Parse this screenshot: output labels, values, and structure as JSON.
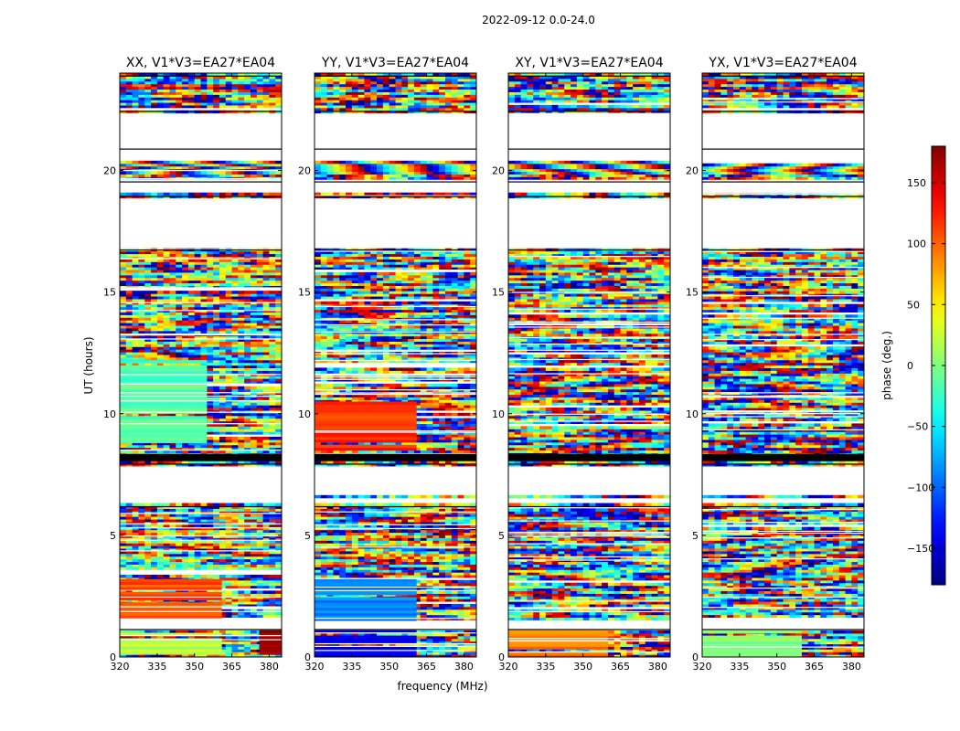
{
  "figure": {
    "suptitle": "2022-09-12 0.0-24.0",
    "xlabel": "frequency (MHz)",
    "ylabel": "UT (hours)"
  },
  "colorbar": {
    "label": "phase (deg.)",
    "range": [
      -180,
      180
    ],
    "ticks": [
      150,
      100,
      50,
      0,
      -50,
      -100,
      -150
    ],
    "tick_labels": [
      "150",
      "100",
      "50",
      "0",
      "−50",
      "−100",
      "−150"
    ],
    "colormap": "jet",
    "colors": [
      "#00007f",
      "#0000ff",
      "#007fff",
      "#00ffff",
      "#7fff7f",
      "#ffff00",
      "#ff7f00",
      "#ff0000",
      "#7f0000"
    ]
  },
  "chart_data": [
    {
      "type": "heatmap",
      "title": "XX, V1*V3=EA27*EA04",
      "xlim": [
        320,
        385
      ],
      "ylim": [
        0,
        24
      ],
      "xticks": [
        320,
        335,
        350,
        365,
        380
      ],
      "xtick_labels": [
        "320",
        "335",
        "350",
        "365",
        "380"
      ],
      "yticks": [
        0,
        5,
        10,
        15,
        20
      ],
      "ytick_labels": [
        "0",
        "5",
        "10",
        "15",
        "20"
      ],
      "value": "phase (deg.)",
      "blocks": [
        {
          "y": [
            0,
            1.1
          ],
          "x": [
            320,
            361
          ],
          "phase": 20
        },
        {
          "y": [
            0,
            1.1
          ],
          "x": [
            376,
            385
          ],
          "phase": 170
        },
        {
          "y": [
            1.5,
            3.2
          ],
          "x": [
            320,
            361
          ],
          "phase": 110
        },
        {
          "y": [
            8.7,
            12.2
          ],
          "x": [
            320,
            355
          ],
          "phase": -15
        }
      ]
    },
    {
      "type": "heatmap",
      "title": "YY, V1*V3=EA27*EA04",
      "xlim": [
        320,
        385
      ],
      "ylim": [
        0,
        24
      ],
      "xticks": [
        320,
        335,
        350,
        365,
        380
      ],
      "xtick_labels": [
        "320",
        "335",
        "350",
        "365",
        "380"
      ],
      "yticks": [
        0,
        5,
        10,
        15,
        20
      ],
      "ytick_labels": [
        "0",
        "5",
        "10",
        "15",
        "20"
      ],
      "value": "phase (deg.)",
      "blocks": [
        {
          "y": [
            0,
            1.1
          ],
          "x": [
            320,
            361
          ],
          "phase": -140
        },
        {
          "y": [
            1.5,
            3.2
          ],
          "x": [
            320,
            361
          ],
          "phase": -90
        },
        {
          "y": [
            8.5,
            10.5
          ],
          "x": [
            320,
            361
          ],
          "phase": 120
        }
      ]
    },
    {
      "type": "heatmap",
      "title": "XY, V1*V3=EA27*EA04",
      "xlim": [
        320,
        385
      ],
      "ylim": [
        0,
        24
      ],
      "xticks": [
        320,
        335,
        350,
        365,
        380
      ],
      "xtick_labels": [
        "320",
        "335",
        "350",
        "365",
        "380"
      ],
      "yticks": [
        0,
        5,
        10,
        15,
        20
      ],
      "ytick_labels": [
        "0",
        "5",
        "10",
        "15",
        "20"
      ],
      "value": "phase (deg.)",
      "blocks": [
        {
          "y": [
            0,
            1.1
          ],
          "x": [
            320,
            360
          ],
          "phase": 90
        }
      ]
    },
    {
      "type": "heatmap",
      "title": "YX, V1*V3=EA27*EA04",
      "xlim": [
        320,
        385
      ],
      "ylim": [
        0,
        24
      ],
      "xticks": [
        320,
        335,
        350,
        365,
        380
      ],
      "xtick_labels": [
        "320",
        "335",
        "350",
        "365",
        "380"
      ],
      "yticks": [
        0,
        5,
        10,
        15,
        20
      ],
      "ytick_labels": [
        "0",
        "5",
        "10",
        "15",
        "20"
      ],
      "value": "phase (deg.)",
      "blocks": [
        {
          "y": [
            0,
            1.1
          ],
          "x": [
            320,
            360
          ],
          "phase": 0
        }
      ]
    }
  ],
  "shared": {
    "blank_ut_ranges": [
      [
        1.1,
        1.5
      ],
      [
        6.3,
        6.6
      ],
      [
        6.7,
        7.9
      ],
      [
        16.8,
        18.9
      ],
      [
        19.1,
        19.6
      ],
      [
        20.4,
        20.9
      ],
      [
        21.0,
        22.4
      ]
    ],
    "missing_ut_ranges": [
      [
        8.05,
        8.35
      ]
    ],
    "fringe_ut_ranges": [
      [
        19.9,
        20.4
      ]
    ],
    "data_ut_range": [
      0,
      24
    ]
  }
}
